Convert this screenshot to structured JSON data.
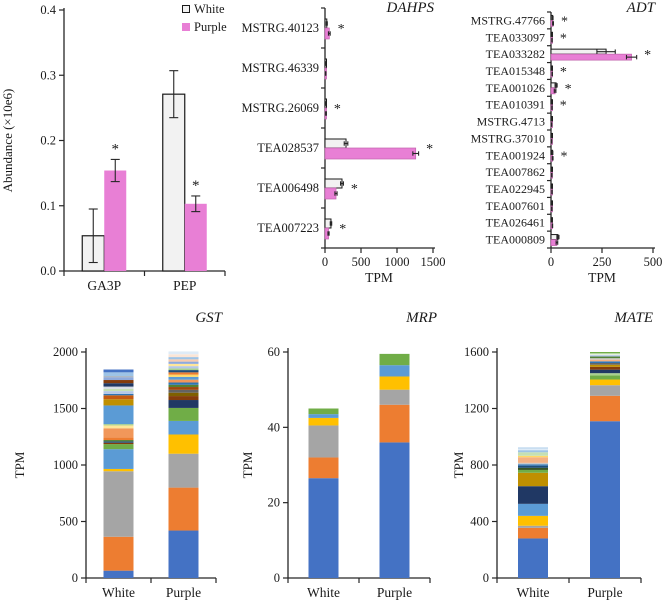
{
  "figure": {
    "legend": {
      "items": [
        {
          "label": "White",
          "color": "#f2f2f2",
          "border": "#1a1a1a"
        },
        {
          "label": "Purple",
          "color": "#e87fd5",
          "border": "none"
        }
      ]
    },
    "colors": {
      "white_bar": "#f2f2f2",
      "purple_bar": "#e87fd5",
      "axis": "#262626"
    }
  },
  "chart_data": [
    {
      "id": "abundance",
      "type": "bar",
      "title": "",
      "ylabel": "Abundance (×10e6)",
      "xlabel": "",
      "categories": [
        "GA3P",
        "PEP"
      ],
      "ylim": [
        0,
        0.4
      ],
      "yticks": [
        "0.0",
        "0.1",
        "0.2",
        "0.3",
        "0.4"
      ],
      "series": [
        {
          "name": "White",
          "values": [
            0.054,
            0.271
          ],
          "errors": [
            0.041,
            0.036
          ]
        },
        {
          "name": "Purple",
          "values": [
            0.154,
            0.103
          ],
          "errors": [
            0.017,
            0.012
          ]
        }
      ],
      "sig_purple": [
        true,
        true
      ],
      "sig_marker": "*"
    },
    {
      "id": "DAHPS",
      "type": "hbar",
      "title": "DAHPS",
      "xlabel": "TPM",
      "categories": [
        "MSTRG.40123",
        "MSTRG.46339",
        "MSTRG.26069",
        "TEA028537",
        "TEA006498",
        "TEA007223"
      ],
      "xlim": [
        0,
        1500
      ],
      "xticks": [
        "0",
        "500",
        "1000",
        "1500"
      ],
      "series": [
        {
          "name": "White",
          "values": [
            25,
            10,
            12,
            292,
            236,
            83
          ],
          "errors": [
            7,
            3,
            4,
            25,
            20,
            10
          ]
        },
        {
          "name": "Purple",
          "values": [
            60,
            9,
            14,
            1260,
            153,
            49
          ],
          "errors": [
            12,
            3,
            5,
            40,
            15,
            8
          ]
        }
      ],
      "sig": [
        true,
        false,
        true,
        true,
        true,
        true
      ],
      "sig_marker": "*"
    },
    {
      "id": "ADT",
      "type": "hbar",
      "title": "ADT",
      "xlabel": "TPM",
      "categories": [
        "MSTRG.47766",
        "TEA033097",
        "TEA033282",
        "TEA015348",
        "TEA001026",
        "TEA010391",
        "MSTRG.4713",
        "MSTRG.37010",
        "TEA001924",
        "TEA007862",
        "TEA022945",
        "TEA007601",
        "TEA026461",
        "TEA000809"
      ],
      "xlim": [
        0,
        500
      ],
      "xticks": [
        "0",
        "250",
        "500"
      ],
      "series": [
        {
          "name": "White",
          "values": [
            8,
            6,
            270,
            5,
            25,
            4,
            3,
            3,
            7,
            4,
            5,
            4,
            6,
            34
          ],
          "errors": [
            2,
            1,
            45,
            1,
            5,
            1,
            1,
            1,
            2,
            1,
            1,
            1,
            1,
            5
          ]
        },
        {
          "name": "Purple",
          "values": [
            10,
            5,
            395,
            6,
            20,
            5,
            3,
            3,
            8,
            4,
            5,
            4,
            7,
            29
          ],
          "errors": [
            2,
            1,
            25,
            1,
            4,
            1,
            1,
            1,
            2,
            1,
            1,
            1,
            1,
            4
          ]
        }
      ],
      "sig": [
        true,
        true,
        true,
        true,
        true,
        true,
        false,
        false,
        true,
        false,
        false,
        false,
        false,
        false
      ],
      "sig_marker": "*"
    },
    {
      "id": "GST",
      "type": "stacked",
      "title": "GST",
      "ylabel": "TPM",
      "categories": [
        "White",
        "Purple"
      ],
      "ylim": [
        0,
        2000
      ],
      "yticks": [
        "0",
        "500",
        "1000",
        "1500",
        "2000"
      ],
      "stacks": [
        {
          "name": "White",
          "total": 1845,
          "segments": [
            {
              "c": "#4472C4",
              "v": 65
            },
            {
              "c": "#ED7D31",
              "v": 300
            },
            {
              "c": "#A5A5A5",
              "v": 580
            },
            {
              "c": "#FFC000",
              "v": 20
            },
            {
              "c": "#5B9BD5",
              "v": 175
            },
            {
              "c": "#70AD47",
              "v": 45
            },
            {
              "c": "#843C0C",
              "v": 12
            },
            {
              "c": "#1F4E79",
              "v": 12
            },
            {
              "c": "#538135",
              "v": 12
            },
            {
              "c": "#ED7D31",
              "v": 24
            },
            {
              "c": "#F1975A",
              "v": 80
            },
            {
              "c": "#FFE699",
              "v": 25
            },
            {
              "c": "#A9D18E",
              "v": 12
            },
            {
              "c": "#5B9BD5",
              "v": 165
            },
            {
              "c": "#BF8F00",
              "v": 55
            },
            {
              "c": "#C55A11",
              "v": 35
            },
            {
              "c": "#2E75B6",
              "v": 12
            },
            {
              "c": "#B4C7E7",
              "v": 25
            },
            {
              "c": "#C5E0B4",
              "v": 20
            },
            {
              "c": "#D6DCE5",
              "v": 20
            },
            {
              "c": "#203864",
              "v": 30
            },
            {
              "c": "#843C0C",
              "v": 28
            },
            {
              "c": "#8FAADC",
              "v": 25
            },
            {
              "c": "#A6A6A6",
              "v": 8
            },
            {
              "c": "#9DC3E6",
              "v": 35
            },
            {
              "c": "#4472C4",
              "v": 25
            }
          ]
        },
        {
          "name": "Purple",
          "total": 2005,
          "segments": [
            {
              "c": "#4472C4",
              "v": 420
            },
            {
              "c": "#ED7D31",
              "v": 380
            },
            {
              "c": "#A5A5A5",
              "v": 300
            },
            {
              "c": "#FFC000",
              "v": 170
            },
            {
              "c": "#5B9BD5",
              "v": 120
            },
            {
              "c": "#70AD47",
              "v": 115
            },
            {
              "c": "#203864",
              "v": 70
            },
            {
              "c": "#843C0C",
              "v": 35
            },
            {
              "c": "#7F6000",
              "v": 30
            },
            {
              "c": "#636363",
              "v": 25
            },
            {
              "c": "#9E480E",
              "v": 25
            },
            {
              "c": "#538135",
              "v": 20
            },
            {
              "c": "#2E75B6",
              "v": 20
            },
            {
              "c": "#F1975A",
              "v": 25
            },
            {
              "c": "#5B9BD5",
              "v": 25
            },
            {
              "c": "#FFD966",
              "v": 20
            },
            {
              "c": "#ED7D31",
              "v": 20
            },
            {
              "c": "#1F4E79",
              "v": 20
            },
            {
              "c": "#A9D18E",
              "v": 15
            },
            {
              "c": "#B4C7E7",
              "v": 20
            },
            {
              "c": "#FFE699",
              "v": 20
            },
            {
              "c": "#8FAADC",
              "v": 20
            },
            {
              "c": "#F8CBAD",
              "v": 20
            },
            {
              "c": "#9DC3E6",
              "v": 20
            },
            {
              "c": "#FBE5D6",
              "v": 25
            },
            {
              "c": "#DEEBF7",
              "v": 25
            }
          ]
        }
      ]
    },
    {
      "id": "MRP",
      "type": "stacked",
      "title": "MRP",
      "ylabel": "TPM",
      "categories": [
        "White",
        "Purple"
      ],
      "ylim": [
        0,
        60
      ],
      "yticks": [
        "0",
        "20",
        "40",
        "60"
      ],
      "stacks": [
        {
          "name": "White",
          "total": 45,
          "segments": [
            {
              "c": "#4472C4",
              "v": 26.5
            },
            {
              "c": "#ED7D31",
              "v": 5.5
            },
            {
              "c": "#A5A5A5",
              "v": 8.5
            },
            {
              "c": "#FFC000",
              "v": 2
            },
            {
              "c": "#5B9BD5",
              "v": 1
            },
            {
              "c": "#70AD47",
              "v": 1.5
            }
          ]
        },
        {
          "name": "Purple",
          "total": 59.5,
          "segments": [
            {
              "c": "#4472C4",
              "v": 36
            },
            {
              "c": "#ED7D31",
              "v": 10
            },
            {
              "c": "#A5A5A5",
              "v": 4
            },
            {
              "c": "#FFC000",
              "v": 3.5
            },
            {
              "c": "#5B9BD5",
              "v": 3
            },
            {
              "c": "#70AD47",
              "v": 3
            }
          ]
        }
      ]
    },
    {
      "id": "MATE",
      "type": "stacked",
      "title": "MATE",
      "ylabel": "TPM",
      "categories": [
        "White",
        "Purple"
      ],
      "ylim": [
        0,
        1600
      ],
      "yticks": [
        "0",
        "400",
        "800",
        "1200",
        "1600"
      ],
      "stacks": [
        {
          "name": "White",
          "total": 925,
          "segments": [
            {
              "c": "#4472C4",
              "v": 280
            },
            {
              "c": "#ED7D31",
              "v": 75
            },
            {
              "c": "#A5A5A5",
              "v": 15
            },
            {
              "c": "#FFC000",
              "v": 70
            },
            {
              "c": "#5B9BD5",
              "v": 85
            },
            {
              "c": "#203864",
              "v": 125
            },
            {
              "c": "#BF8F00",
              "v": 95
            },
            {
              "c": "#70AD47",
              "v": 20
            },
            {
              "c": "#375623",
              "v": 15
            },
            {
              "c": "#1F4E79",
              "v": 15
            },
            {
              "c": "#2E75B6",
              "v": 10
            },
            {
              "c": "#C9C9C9",
              "v": 10
            },
            {
              "c": "#F4B183",
              "v": 40
            },
            {
              "c": "#FFD966",
              "v": 10
            },
            {
              "c": "#C5E0B4",
              "v": 25
            },
            {
              "c": "#9DC3E6",
              "v": 15
            },
            {
              "c": "#DEEBF7",
              "v": 10
            },
            {
              "c": "#BDD7EE",
              "v": 10
            }
          ]
        },
        {
          "name": "Purple",
          "total": 1600,
          "segments": [
            {
              "c": "#4472C4",
              "v": 1110
            },
            {
              "c": "#ED7D31",
              "v": 180
            },
            {
              "c": "#A5A5A5",
              "v": 75
            },
            {
              "c": "#FFC000",
              "v": 40
            },
            {
              "c": "#70AD47",
              "v": 30
            },
            {
              "c": "#A9D18E",
              "v": 15
            },
            {
              "c": "#203864",
              "v": 25
            },
            {
              "c": "#843C0C",
              "v": 20
            },
            {
              "c": "#BF8F00",
              "v": 15
            },
            {
              "c": "#636363",
              "v": 12
            },
            {
              "c": "#2E75B6",
              "v": 12
            },
            {
              "c": "#F4B183",
              "v": 12
            },
            {
              "c": "#C9C9C9",
              "v": 10
            },
            {
              "c": "#538135",
              "v": 12
            },
            {
              "c": "#B4C7E7",
              "v": 10
            },
            {
              "c": "#E2F0D9",
              "v": 12
            },
            {
              "c": "#70AD47",
              "v": 10
            }
          ]
        }
      ]
    }
  ]
}
